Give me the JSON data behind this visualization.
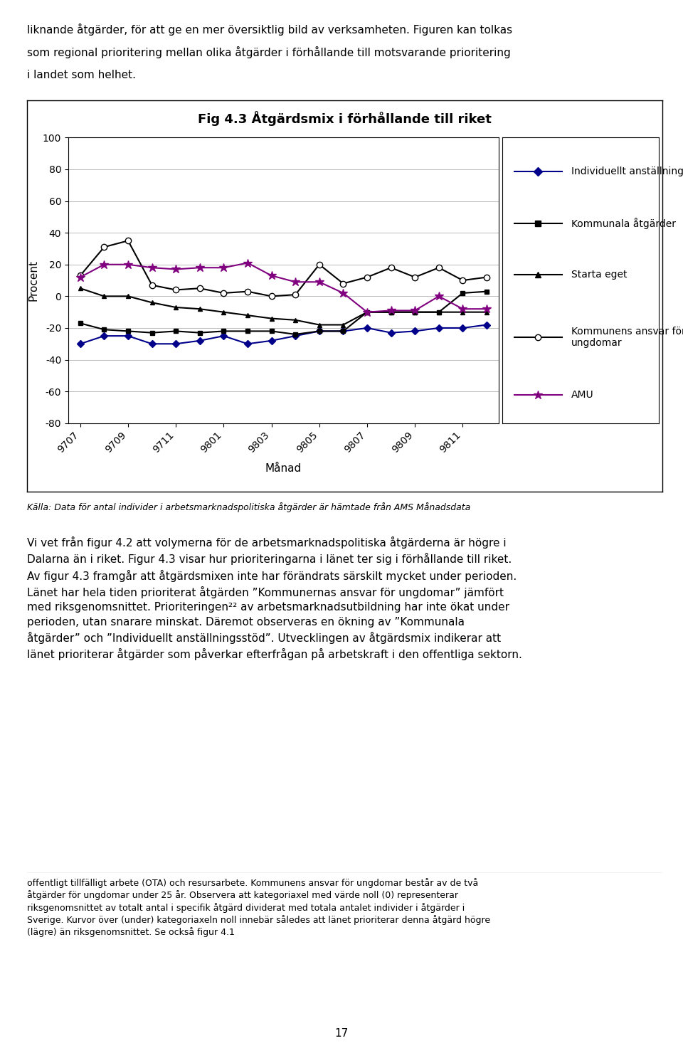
{
  "title": "Fig 4.3 Åtgärdsmix i förhållande till riket",
  "xlabel": "Månad",
  "ylabel": "Procent",
  "ylim": [
    -80,
    100
  ],
  "yticks": [
    -80,
    -60,
    -40,
    -20,
    0,
    20,
    40,
    60,
    80,
    100
  ],
  "x_labels": [
    "9707",
    "9709",
    "9711",
    "9801",
    "9803",
    "9805",
    "9807",
    "9809",
    "9811"
  ],
  "n_points": 18,
  "series": [
    {
      "name": "Individuellt anställningsstöd",
      "color": "#00008B",
      "marker": "D",
      "markersize": 5,
      "marker_facecolor": "#00008B",
      "linewidth": 1.5,
      "values": [
        -30,
        -25,
        -25,
        -30,
        -30,
        -28,
        -25,
        -30,
        -28,
        -25,
        -22,
        -22,
        -20,
        -23,
        -22,
        -20,
        -20,
        -18
      ]
    },
    {
      "name": "Kommunala åtgärder",
      "color": "#000000",
      "marker": "s",
      "markersize": 5,
      "marker_facecolor": "#000000",
      "linewidth": 1.5,
      "values": [
        -17,
        -21,
        -22,
        -23,
        -22,
        -23,
        -22,
        -22,
        -22,
        -24,
        -22,
        -22,
        -10,
        -10,
        -10,
        -10,
        2,
        3
      ]
    },
    {
      "name": "Starta eget",
      "color": "#000000",
      "marker": "^",
      "markersize": 5,
      "marker_facecolor": "#000000",
      "linewidth": 1.5,
      "values": [
        5,
        0,
        0,
        -4,
        -7,
        -8,
        -10,
        -12,
        -14,
        -15,
        -18,
        -18,
        -10,
        -10,
        -10,
        -10,
        -10,
        -10
      ]
    },
    {
      "name": "Kommunens ansvar för ungdomar",
      "color": "#000000",
      "marker": "o",
      "markersize": 6,
      "marker_facecolor": "#ffffff",
      "linewidth": 1.5,
      "values": [
        13,
        31,
        35,
        7,
        4,
        5,
        2,
        3,
        0,
        1,
        20,
        8,
        12,
        18,
        12,
        18,
        10,
        12
      ]
    },
    {
      "name": "AMU",
      "color": "#800080",
      "marker": "*",
      "markersize": 9,
      "marker_facecolor": "#800080",
      "linewidth": 1.5,
      "values": [
        12,
        20,
        20,
        18,
        17,
        18,
        18,
        21,
        13,
        9,
        9,
        2,
        -10,
        -9,
        -9,
        0,
        -8,
        -8
      ]
    }
  ],
  "background_color": "#ffffff",
  "grid_color": "#bbbbbb",
  "title_fontsize": 13,
  "axis_label_fontsize": 11,
  "tick_fontsize": 10,
  "legend_fontsize": 10,
  "top_text_line1": "liknande åtgärder, för att ge en mer översiktlig bild av verksamheten. Figuren kan tolkas",
  "top_text_line2": "som regional prioritering mellan olika åtgärder i förhållande till motsvarande prioritering",
  "top_text_line3": "i landet som helhet.",
  "caption": "Källa: Data för antal individer i arbetsmarknadspolitiska åtgärder är hämtade från AMS Månadsdata",
  "body_lines": [
    "Vi vet från figur 4.2 att volymerna för de arbetsmarknadspolitiska åtgärderna är högre i",
    "Dalarna än i riket. Figur 4.3 visar hur prioriteringarna i länet ter sig i förhållande till riket.",
    "Av figur 4.3 framgår att åtgärdsmixen inte har förändrats särskilt mycket under perioden.",
    "Länet har hela tiden prioriterat åtgärden ”Kommunernas ansvar för ungdomar” jämfört",
    "med riksgenomsnittet. Prioriteringen²² av arbetsmarknadsutbildning har inte ökat under",
    "perioden, utan snarare minskat. Däremot observeras en ökning av ”Kommunala",
    "åtgärder” och ”Individuellt anställningsstöd”. Utvecklingen av åtgärdsmix indikerar att",
    "länet prioriterar åtgärder som påverkar efterfrågan på arbetskraft i den offentliga sektorn."
  ],
  "footnote_lines": [
    "offentligt tillfälligt arbete (OTA) och resursarbete. Kommunens ansvar för ungdomar består av de två",
    "åtgärder för ungdomar under 25 år. Observera att kategoriaxel med värde noll (0) representerar",
    "riksgenomsnittet av totalt antal i specifik åtgärd dividerat med totala antalet individer i åtgärder i",
    "Sverige. Kurvor över (under) kategoriaxeln noll innebär således att länet prioriterar denna åtgärd högre",
    "(lägre) än riksgenomsnittet. Se också figur 4.1"
  ],
  "page_number": "17"
}
